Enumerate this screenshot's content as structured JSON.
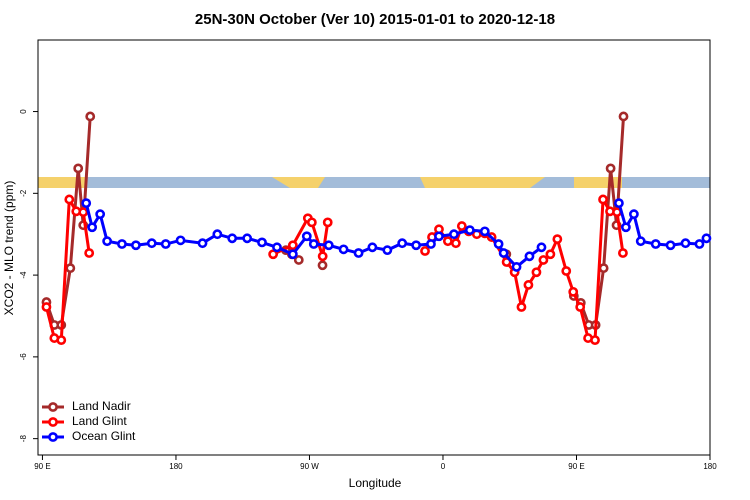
{
  "chart_data": {
    "type": "line",
    "title": "25N-30N October (Ver 10)   2015-01-01 to 2020-12-18",
    "x_label": "Longitude",
    "y_label": "XCO2 - MLO trend (ppm)",
    "xlim": [
      87,
      540
    ],
    "ylim": [
      -8.4,
      1.75
    ],
    "xticks": [
      {
        "value": 90,
        "label": "90 E"
      },
      {
        "value": 180,
        "label": "180"
      },
      {
        "value": 270,
        "label": "90 W"
      },
      {
        "value": 360,
        "label": "0"
      },
      {
        "value": 450,
        "label": "90 E"
      },
      {
        "value": 540,
        "label": "180"
      }
    ],
    "yticks": [
      0,
      -2,
      -4,
      -6,
      -8
    ],
    "legend": "bottom-left",
    "series": [
      {
        "name": "Land Nadir",
        "color": "#a52a2a",
        "x": [
          92.7,
          98.0,
          102.7,
          108.8,
          114.1,
          117.5,
          122.2,
          null,
          254.1,
          258.1,
          262.8,
          null,
          278.8,
          null,
          402.7,
          null,
          448.2,
          452.9,
          458.3,
          462.9,
          468.3,
          473.0,
          477.0,
          481.7
        ],
        "values": [
          -4.66,
          -5.22,
          -5.22,
          -3.83,
          -1.39,
          -2.78,
          -0.12,
          null,
          -3.39,
          -3.49,
          -3.63,
          null,
          -3.76,
          null,
          -3.49,
          null,
          -4.51,
          -4.68,
          -5.22,
          -5.22,
          -3.83,
          -1.39,
          -2.78,
          -0.12
        ]
      },
      {
        "name": "Land Glint",
        "color": "#ff0000",
        "x": [
          92.7,
          98.0,
          102.7,
          108.1,
          112.8,
          117.5,
          121.5,
          null,
          245.5,
          258.8,
          268.9,
          271.6,
          278.9,
          282.3,
          null,
          347.9,
          352.6,
          357.3,
          363.3,
          368.7,
          372.7,
          377.4,
          382.8,
          388.2,
          392.8,
          402.9,
          408.3,
          412.9,
          417.6,
          423.0,
          427.7,
          432.4,
          437.1,
          443.1,
          447.8,
          452.5,
          457.8,
          462.5,
          467.9,
          472.6,
          477.3,
          481.3
        ],
        "values": [
          -4.78,
          -5.54,
          -5.59,
          -2.15,
          -2.44,
          -2.46,
          -3.46,
          null,
          -3.49,
          -3.27,
          -2.61,
          -2.71,
          -3.54,
          -2.71,
          null,
          -3.41,
          -3.07,
          -2.88,
          -3.17,
          -3.22,
          -2.8,
          -2.93,
          -3.0,
          -2.98,
          -3.07,
          -3.68,
          -3.93,
          -4.78,
          -4.24,
          -3.93,
          -3.63,
          -3.49,
          -3.12,
          -3.9,
          -4.41,
          -4.78,
          -5.54,
          -5.59,
          -2.15,
          -2.44,
          -2.46,
          -3.46
        ]
      },
      {
        "name": "Ocean Glint",
        "color": "#0000ff",
        "x": [
          119.5,
          123.5,
          128.9,
          133.6,
          143.6,
          153.0,
          163.7,
          173.1,
          183.1,
          197.9,
          207.9,
          217.9,
          228.0,
          238.0,
          248.1,
          258.8,
          268.2,
          272.9,
          283.0,
          293.0,
          303.1,
          312.4,
          322.5,
          332.5,
          341.9,
          351.9,
          357.3,
          367.4,
          378.1,
          388.2,
          397.5,
          400.9,
          409.6,
          418.3,
          426.4,
          null,
          478.6,
          483.3,
          488.7,
          493.3,
          503.4,
          513.4,
          523.5,
          532.9,
          537.6
        ],
        "values": [
          -2.24,
          -2.83,
          -2.51,
          -3.17,
          -3.24,
          -3.27,
          -3.22,
          -3.24,
          -3.15,
          -3.22,
          -3.0,
          -3.1,
          -3.1,
          -3.2,
          -3.32,
          -3.49,
          -3.05,
          -3.24,
          -3.27,
          -3.37,
          -3.46,
          -3.32,
          -3.39,
          -3.22,
          -3.27,
          -3.24,
          -3.05,
          -3.0,
          -2.9,
          -2.93,
          -3.24,
          -3.46,
          -3.8,
          -3.54,
          -3.32,
          null,
          -2.24,
          -2.83,
          -2.51,
          -3.17,
          -3.24,
          -3.27,
          -3.22,
          -3.24,
          -3.1
        ]
      }
    ]
  }
}
